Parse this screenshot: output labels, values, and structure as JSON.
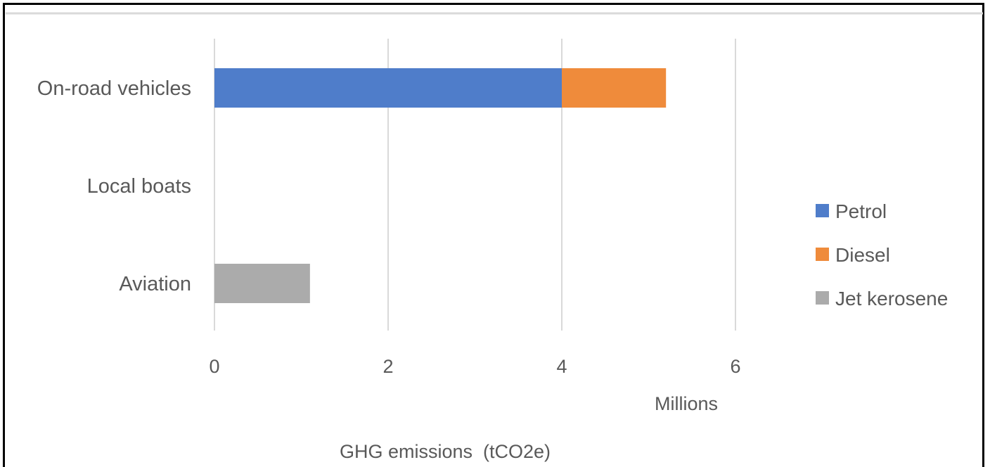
{
  "chart_data": {
    "type": "bar",
    "orientation": "horizontal",
    "stacked": true,
    "categories": [
      "On-road vehicles",
      "Local boats",
      "Aviation"
    ],
    "series": [
      {
        "name": "Petrol",
        "values": [
          4.0,
          0,
          0
        ],
        "color": "#4f7dca"
      },
      {
        "name": "Diesel",
        "values": [
          1.2,
          0,
          0
        ],
        "color": "#ef8b3b"
      },
      {
        "name": "Jet kerosene",
        "values": [
          0,
          0,
          1.1
        ],
        "color": "#ababab"
      }
    ],
    "x_ticks": [
      0,
      2,
      4,
      6
    ],
    "xlim": [
      0,
      6.9
    ],
    "units_label": "Millions",
    "xlabel": "GHG emissions  (tCO2e)",
    "grid": true,
    "legend_position": "right"
  }
}
